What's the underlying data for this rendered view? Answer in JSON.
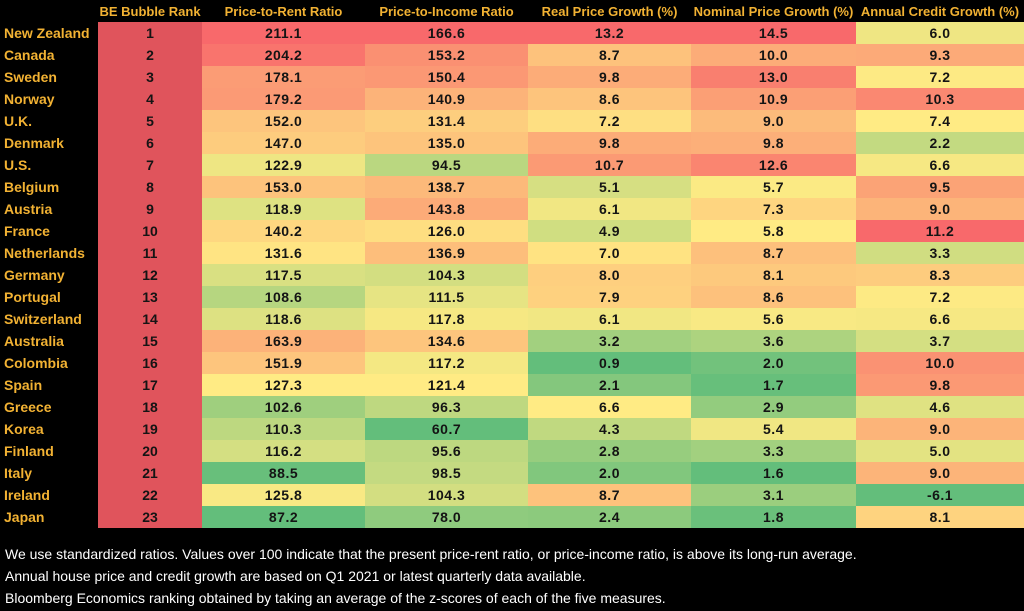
{
  "chart_data": {
    "type": "heatmap",
    "columns": [
      "",
      "BE Bubble Rank",
      "Price-to-Rent Ratio",
      "Price-to-Income Ratio",
      "Real Price Growth (%)",
      "Nominal Price Growth (%)",
      "Annual Credit Growth (%)"
    ],
    "rows": [
      {
        "country": "New Zealand",
        "rank": "1",
        "values": [
          "211.1",
          "166.6",
          "13.2",
          "14.5",
          "6.0"
        ]
      },
      {
        "country": "Canada",
        "rank": "2",
        "values": [
          "204.2",
          "153.2",
          "8.7",
          "10.0",
          "9.3"
        ]
      },
      {
        "country": "Sweden",
        "rank": "3",
        "values": [
          "178.1",
          "150.4",
          "9.8",
          "13.0",
          "7.2"
        ]
      },
      {
        "country": "Norway",
        "rank": "4",
        "values": [
          "179.2",
          "140.9",
          "8.6",
          "10.9",
          "10.3"
        ]
      },
      {
        "country": "U.K.",
        "rank": "5",
        "values": [
          "152.0",
          "131.4",
          "7.2",
          "9.0",
          "7.4"
        ]
      },
      {
        "country": "Denmark",
        "rank": "6",
        "values": [
          "147.0",
          "135.0",
          "9.8",
          "9.8",
          "2.2"
        ]
      },
      {
        "country": "U.S.",
        "rank": "7",
        "values": [
          "122.9",
          "94.5",
          "10.7",
          "12.6",
          "6.6"
        ]
      },
      {
        "country": "Belgium",
        "rank": "8",
        "values": [
          "153.0",
          "138.7",
          "5.1",
          "5.7",
          "9.5"
        ]
      },
      {
        "country": "Austria",
        "rank": "9",
        "values": [
          "118.9",
          "143.8",
          "6.1",
          "7.3",
          "9.0"
        ]
      },
      {
        "country": "France",
        "rank": "10",
        "values": [
          "140.2",
          "126.0",
          "4.9",
          "5.8",
          "11.2"
        ]
      },
      {
        "country": "Netherlands",
        "rank": "11",
        "values": [
          "131.6",
          "136.9",
          "7.0",
          "8.7",
          "3.3"
        ]
      },
      {
        "country": "Germany",
        "rank": "12",
        "values": [
          "117.5",
          "104.3",
          "8.0",
          "8.1",
          "8.3"
        ]
      },
      {
        "country": "Portugal",
        "rank": "13",
        "values": [
          "108.6",
          "111.5",
          "7.9",
          "8.6",
          "7.2"
        ]
      },
      {
        "country": "Switzerland",
        "rank": "14",
        "values": [
          "118.6",
          "117.8",
          "6.1",
          "5.6",
          "6.6"
        ]
      },
      {
        "country": "Australia",
        "rank": "15",
        "values": [
          "163.9",
          "134.6",
          "3.2",
          "3.6",
          "3.7"
        ]
      },
      {
        "country": "Colombia",
        "rank": "16",
        "values": [
          "151.9",
          "117.2",
          "0.9",
          "2.0",
          "10.0"
        ]
      },
      {
        "country": "Spain",
        "rank": "17",
        "values": [
          "127.3",
          "121.4",
          "2.1",
          "1.7",
          "9.8"
        ]
      },
      {
        "country": "Greece",
        "rank": "18",
        "values": [
          "102.6",
          "96.3",
          "6.6",
          "2.9",
          "4.6"
        ]
      },
      {
        "country": "Korea",
        "rank": "19",
        "values": [
          "110.3",
          "60.7",
          "4.3",
          "5.4",
          "9.0"
        ]
      },
      {
        "country": "Finland",
        "rank": "20",
        "values": [
          "116.2",
          "95.6",
          "2.8",
          "3.3",
          "5.0"
        ]
      },
      {
        "country": "Italy",
        "rank": "21",
        "values": [
          "88.5",
          "98.5",
          "2.0",
          "1.6",
          "9.0"
        ]
      },
      {
        "country": "Ireland",
        "rank": "22",
        "values": [
          "125.8",
          "104.3",
          "8.7",
          "3.1",
          "-6.1"
        ]
      },
      {
        "country": "Japan",
        "rank": "23",
        "values": [
          "87.2",
          "78.0",
          "2.4",
          "1.8",
          "8.1"
        ]
      }
    ],
    "color_scale": {
      "high": "#f8696b",
      "mid": "#ffeb84",
      "low": "#63be7b"
    }
  },
  "notes": [
    "We use standardized ratios. Values over 100 indicate that the present price-rent ratio, or price-income ratio, is above its long-run average.",
    "Annual house price and credit growth are based on Q1 2021 or latest quarterly data available.",
    "Bloomberg Economics ranking obtained by taking an average of the z-scores of each of the five measures."
  ],
  "colors": {
    "background": "#000000",
    "header_text": "#f2b233",
    "note_text": "#ffffff",
    "rank_fill": "#e0545c"
  }
}
